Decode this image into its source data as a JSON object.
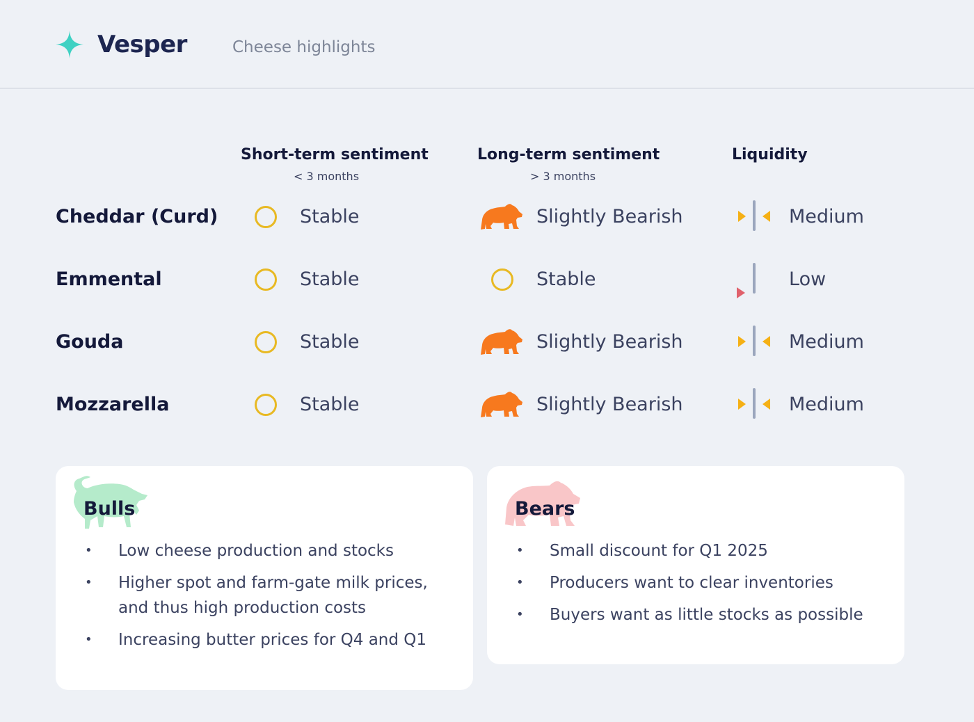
{
  "header": {
    "brand": "Vesper",
    "subtitle": "Cheese highlights",
    "logo_icon": "sparkle-icon"
  },
  "columns": {
    "short_term": {
      "label": "Short-term sentiment",
      "sub": "< 3 months"
    },
    "long_term": {
      "label": "Long-term sentiment",
      "sub": "> 3 months"
    },
    "liquidity": {
      "label": "Liquidity"
    }
  },
  "rows": [
    {
      "name": "Cheddar (Curd)",
      "short_term": "Stable",
      "short_icon": "neutral-circle-icon",
      "long_term": "Slightly Bearish",
      "long_icon": "bear-icon",
      "liquidity": "Medium",
      "liquidity_icon": "liquidity-medium-icon"
    },
    {
      "name": "Emmental",
      "short_term": "Stable",
      "short_icon": "neutral-circle-icon",
      "long_term": "Stable",
      "long_icon": "neutral-circle-icon",
      "liquidity": "Low",
      "liquidity_icon": "liquidity-low-icon"
    },
    {
      "name": "Gouda",
      "short_term": "Stable",
      "short_icon": "neutral-circle-icon",
      "long_term": "Slightly Bearish",
      "long_icon": "bear-icon",
      "liquidity": "Medium",
      "liquidity_icon": "liquidity-medium-icon"
    },
    {
      "name": "Mozzarella",
      "short_term": "Stable",
      "short_icon": "neutral-circle-icon",
      "long_term": "Slightly Bearish",
      "long_icon": "bear-icon",
      "liquidity": "Medium",
      "liquidity_icon": "liquidity-medium-icon"
    }
  ],
  "bulls": {
    "title": "Bulls",
    "icon": "bull-icon",
    "items": [
      "Low cheese production and stocks",
      "Higher spot and farm-gate milk prices, and thus high production costs",
      "Increasing butter prices for Q4 and Q1"
    ]
  },
  "bears": {
    "title": "Bears",
    "icon": "bear-icon",
    "items": [
      "Small discount for Q1 2025",
      "Producers want to clear inventories",
      "Buyers want as little stocks as possible"
    ]
  },
  "colors": {
    "background": "#eef1f6",
    "title": "#14193a",
    "body_text": "#3b4260",
    "stable_circle": "#e8b923",
    "bear_orange": "#f7791e",
    "liquidity_arrow": "#f5b015",
    "liquidity_low_arrow": "#e0616c",
    "liquidity_bar": "#9ba6bd",
    "bull_deco": "#b5ebcb",
    "bear_deco": "#f9c6c8",
    "logo": "#3fd1c3"
  }
}
